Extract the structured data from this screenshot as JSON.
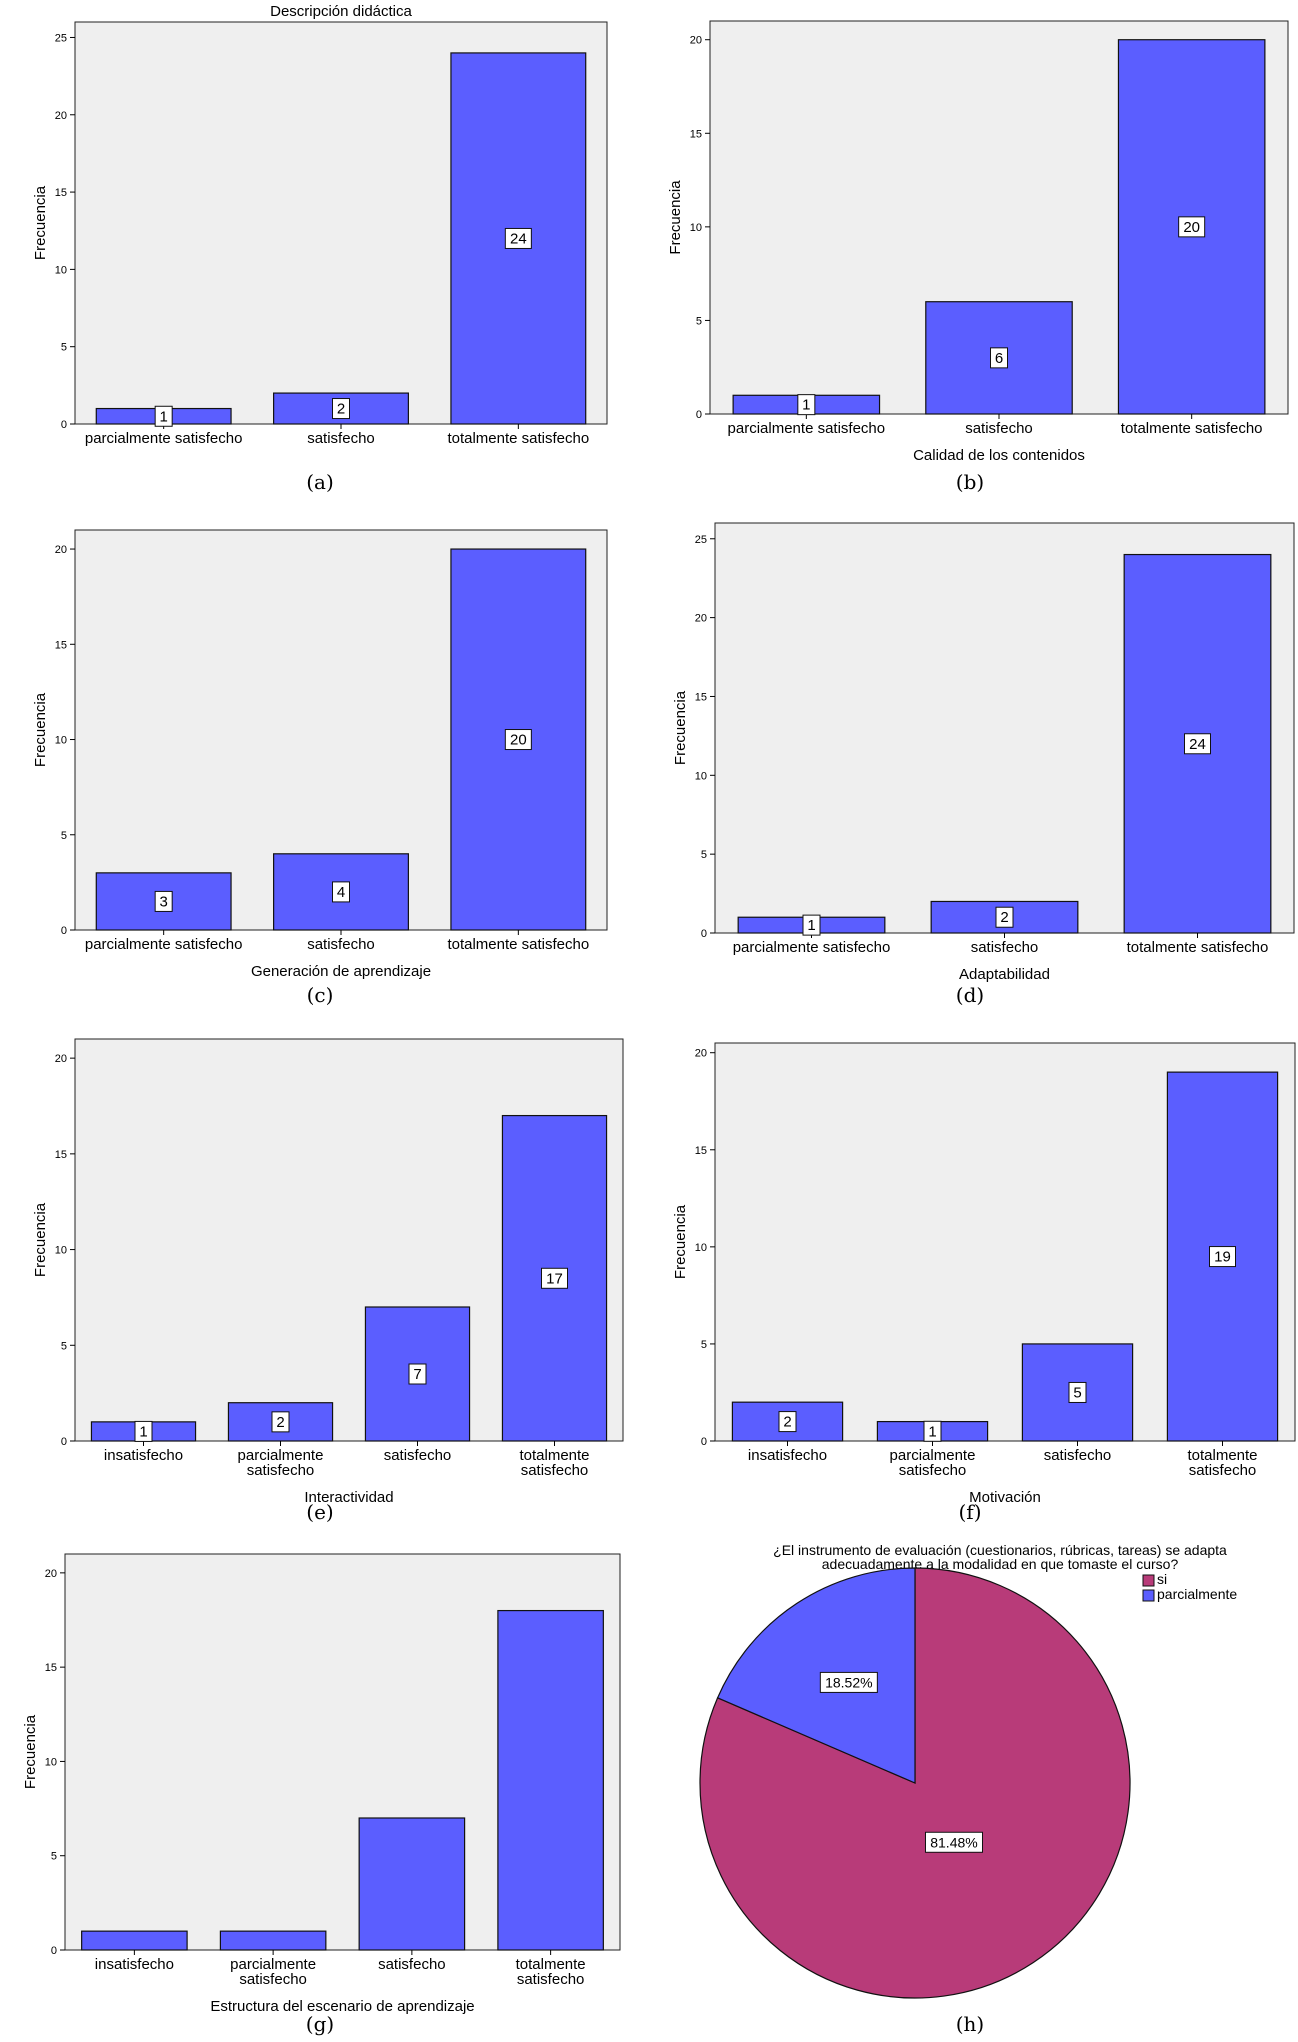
{
  "chart_data": [
    {
      "id": "a",
      "type": "bar",
      "title": "Descripción didáctica",
      "xlabel": "",
      "ylabel": "Frecuencia",
      "categories": [
        [
          "parcialmente satisfecho"
        ],
        [
          "satisfecho"
        ],
        [
          "totalmente satisfecho"
        ]
      ],
      "values": [
        1,
        2,
        24
      ],
      "data_labels": [
        "1",
        "2",
        "24"
      ],
      "ylim": [
        0,
        26
      ],
      "yticks": [
        0,
        5,
        10,
        15,
        20,
        25
      ],
      "caption": "(a)"
    },
    {
      "id": "b",
      "type": "bar",
      "title": "",
      "xlabel": "Calidad de los contenidos",
      "ylabel": "Frecuencia",
      "categories": [
        [
          "parcialmente satisfecho"
        ],
        [
          "satisfecho"
        ],
        [
          "totalmente satisfecho"
        ]
      ],
      "values": [
        1,
        6,
        20
      ],
      "data_labels": [
        "1",
        "6",
        "20"
      ],
      "ylim": [
        0,
        21
      ],
      "yticks": [
        0,
        5,
        10,
        15,
        20
      ],
      "caption": "(b)"
    },
    {
      "id": "c",
      "type": "bar",
      "title": "",
      "xlabel": "Generación de aprendizaje",
      "ylabel": "Frecuencia",
      "categories": [
        [
          "parcialmente satisfecho"
        ],
        [
          "satisfecho"
        ],
        [
          "totalmente satisfecho"
        ]
      ],
      "values": [
        3,
        4,
        20
      ],
      "data_labels": [
        "3",
        "4",
        "20"
      ],
      "ylim": [
        0,
        21
      ],
      "yticks": [
        0,
        5,
        10,
        15,
        20
      ],
      "caption": "(c)"
    },
    {
      "id": "d",
      "type": "bar",
      "title": "",
      "xlabel": "Adaptabilidad",
      "ylabel": "Frecuencia",
      "categories": [
        [
          "parcialmente satisfecho"
        ],
        [
          "satisfecho"
        ],
        [
          "totalmente satisfecho"
        ]
      ],
      "values": [
        1,
        2,
        24
      ],
      "data_labels": [
        "1",
        "2",
        "24"
      ],
      "ylim": [
        0,
        26
      ],
      "yticks": [
        0,
        5,
        10,
        15,
        20,
        25
      ],
      "caption": "(d)"
    },
    {
      "id": "e",
      "type": "bar",
      "title": "",
      "xlabel": "Interactividad",
      "ylabel": "Frecuencia",
      "categories": [
        [
          "insatisfecho"
        ],
        [
          "parcialmente",
          "satisfecho"
        ],
        [
          "satisfecho"
        ],
        [
          "totalmente",
          "satisfecho"
        ]
      ],
      "values": [
        1,
        2,
        7,
        17
      ],
      "data_labels": [
        "1",
        "2",
        "7",
        "17"
      ],
      "ylim": [
        0,
        21
      ],
      "yticks": [
        0,
        5,
        10,
        15,
        20
      ],
      "caption": "(e)"
    },
    {
      "id": "f",
      "type": "bar",
      "title": "",
      "xlabel": "Motivación",
      "ylabel": "Frecuencia",
      "categories": [
        [
          "insatisfecho"
        ],
        [
          "parcialmente",
          "satisfecho"
        ],
        [
          "satisfecho"
        ],
        [
          "totalmente",
          "satisfecho"
        ]
      ],
      "values": [
        2,
        1,
        5,
        19
      ],
      "data_labels": [
        "2",
        "1",
        "5",
        "19"
      ],
      "ylim": [
        0,
        20.5
      ],
      "yticks": [
        0,
        5,
        10,
        15,
        20
      ],
      "caption": "(f)"
    },
    {
      "id": "g",
      "type": "bar",
      "title": "",
      "xlabel": "Estructura del escenario de aprendizaje",
      "ylabel": "Frecuencia",
      "categories": [
        [
          "insatisfecho"
        ],
        [
          "parcialmente",
          "satisfecho"
        ],
        [
          "satisfecho"
        ],
        [
          "totalmente",
          "satisfecho"
        ]
      ],
      "values": [
        1,
        1,
        7,
        18
      ],
      "data_labels": [],
      "ylim": [
        0,
        21
      ],
      "yticks": [
        0,
        5,
        10,
        15,
        20
      ],
      "caption": "(g)"
    },
    {
      "id": "h",
      "type": "pie",
      "title": [
        "¿El instrumento de evaluación (cuestionarios, rúbricas, tareas) se adapta",
        "adecuadamente a la modalidad en que tomaste el curso?"
      ],
      "slices": [
        {
          "label": "si",
          "value": 81.48,
          "display": "81.48%",
          "color": "#b83b79"
        },
        {
          "label": "parcialmente",
          "value": 18.52,
          "display": "18.52%",
          "color": "#5b5eff"
        }
      ],
      "legend_position": "top-right",
      "caption": "(h)"
    }
  ]
}
